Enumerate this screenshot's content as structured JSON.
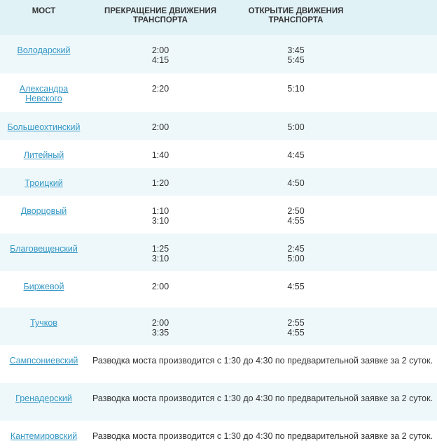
{
  "header": {
    "bridge": "МОСТ",
    "closing": "ПРЕКРАЩЕНИЕ ДВИЖЕНИЯ ТРАНСПОРТА",
    "opening": "ОТКРЫТИЕ ДВИЖЕНИЯ ТРАНСПОРТА"
  },
  "rows": [
    {
      "bridge": "Володарский",
      "closing": [
        "2:00",
        "4:15"
      ],
      "opening": [
        "3:45",
        "5:45"
      ]
    },
    {
      "bridge": "Александра Невского",
      "closing": [
        "2:20"
      ],
      "opening": [
        "5:10"
      ]
    },
    {
      "bridge": "Большеохтинский",
      "closing": [
        "2:00"
      ],
      "opening": [
        "5:00"
      ]
    },
    {
      "bridge": "Литейный",
      "closing": [
        "1:40"
      ],
      "opening": [
        "4:45"
      ]
    },
    {
      "bridge": "Троицкий",
      "closing": [
        "1:20"
      ],
      "opening": [
        "4:50"
      ]
    },
    {
      "bridge": "Дворцовый",
      "closing": [
        "1:10",
        "3:10"
      ],
      "opening": [
        "2:50",
        "4:55"
      ]
    },
    {
      "bridge": "Благовещенский",
      "closing": [
        "1:25",
        "3:10"
      ],
      "opening": [
        "2:45",
        "5:00"
      ]
    },
    {
      "bridge": "Биржевой",
      "closing": [
        "2:00"
      ],
      "opening": [
        "4:55"
      ]
    },
    {
      "bridge": "Тучков",
      "closing": [
        "2:00",
        "3:35"
      ],
      "opening": [
        "2:55",
        "4:55"
      ]
    },
    {
      "bridge": "Сампсониевский",
      "note": "Разводка моста производится с 1:30 до 4:30 по предварительной заявке за 2 суток."
    },
    {
      "bridge": "Гренадерский",
      "note": "Разводка моста производится с 1:30 до 4:30 по предварительной заявке за 2 суток."
    },
    {
      "bridge": "Кантемировский",
      "note": "Разводка моста производится с 1:30 до 4:30 по предварительной заявке за 2 суток."
    }
  ]
}
